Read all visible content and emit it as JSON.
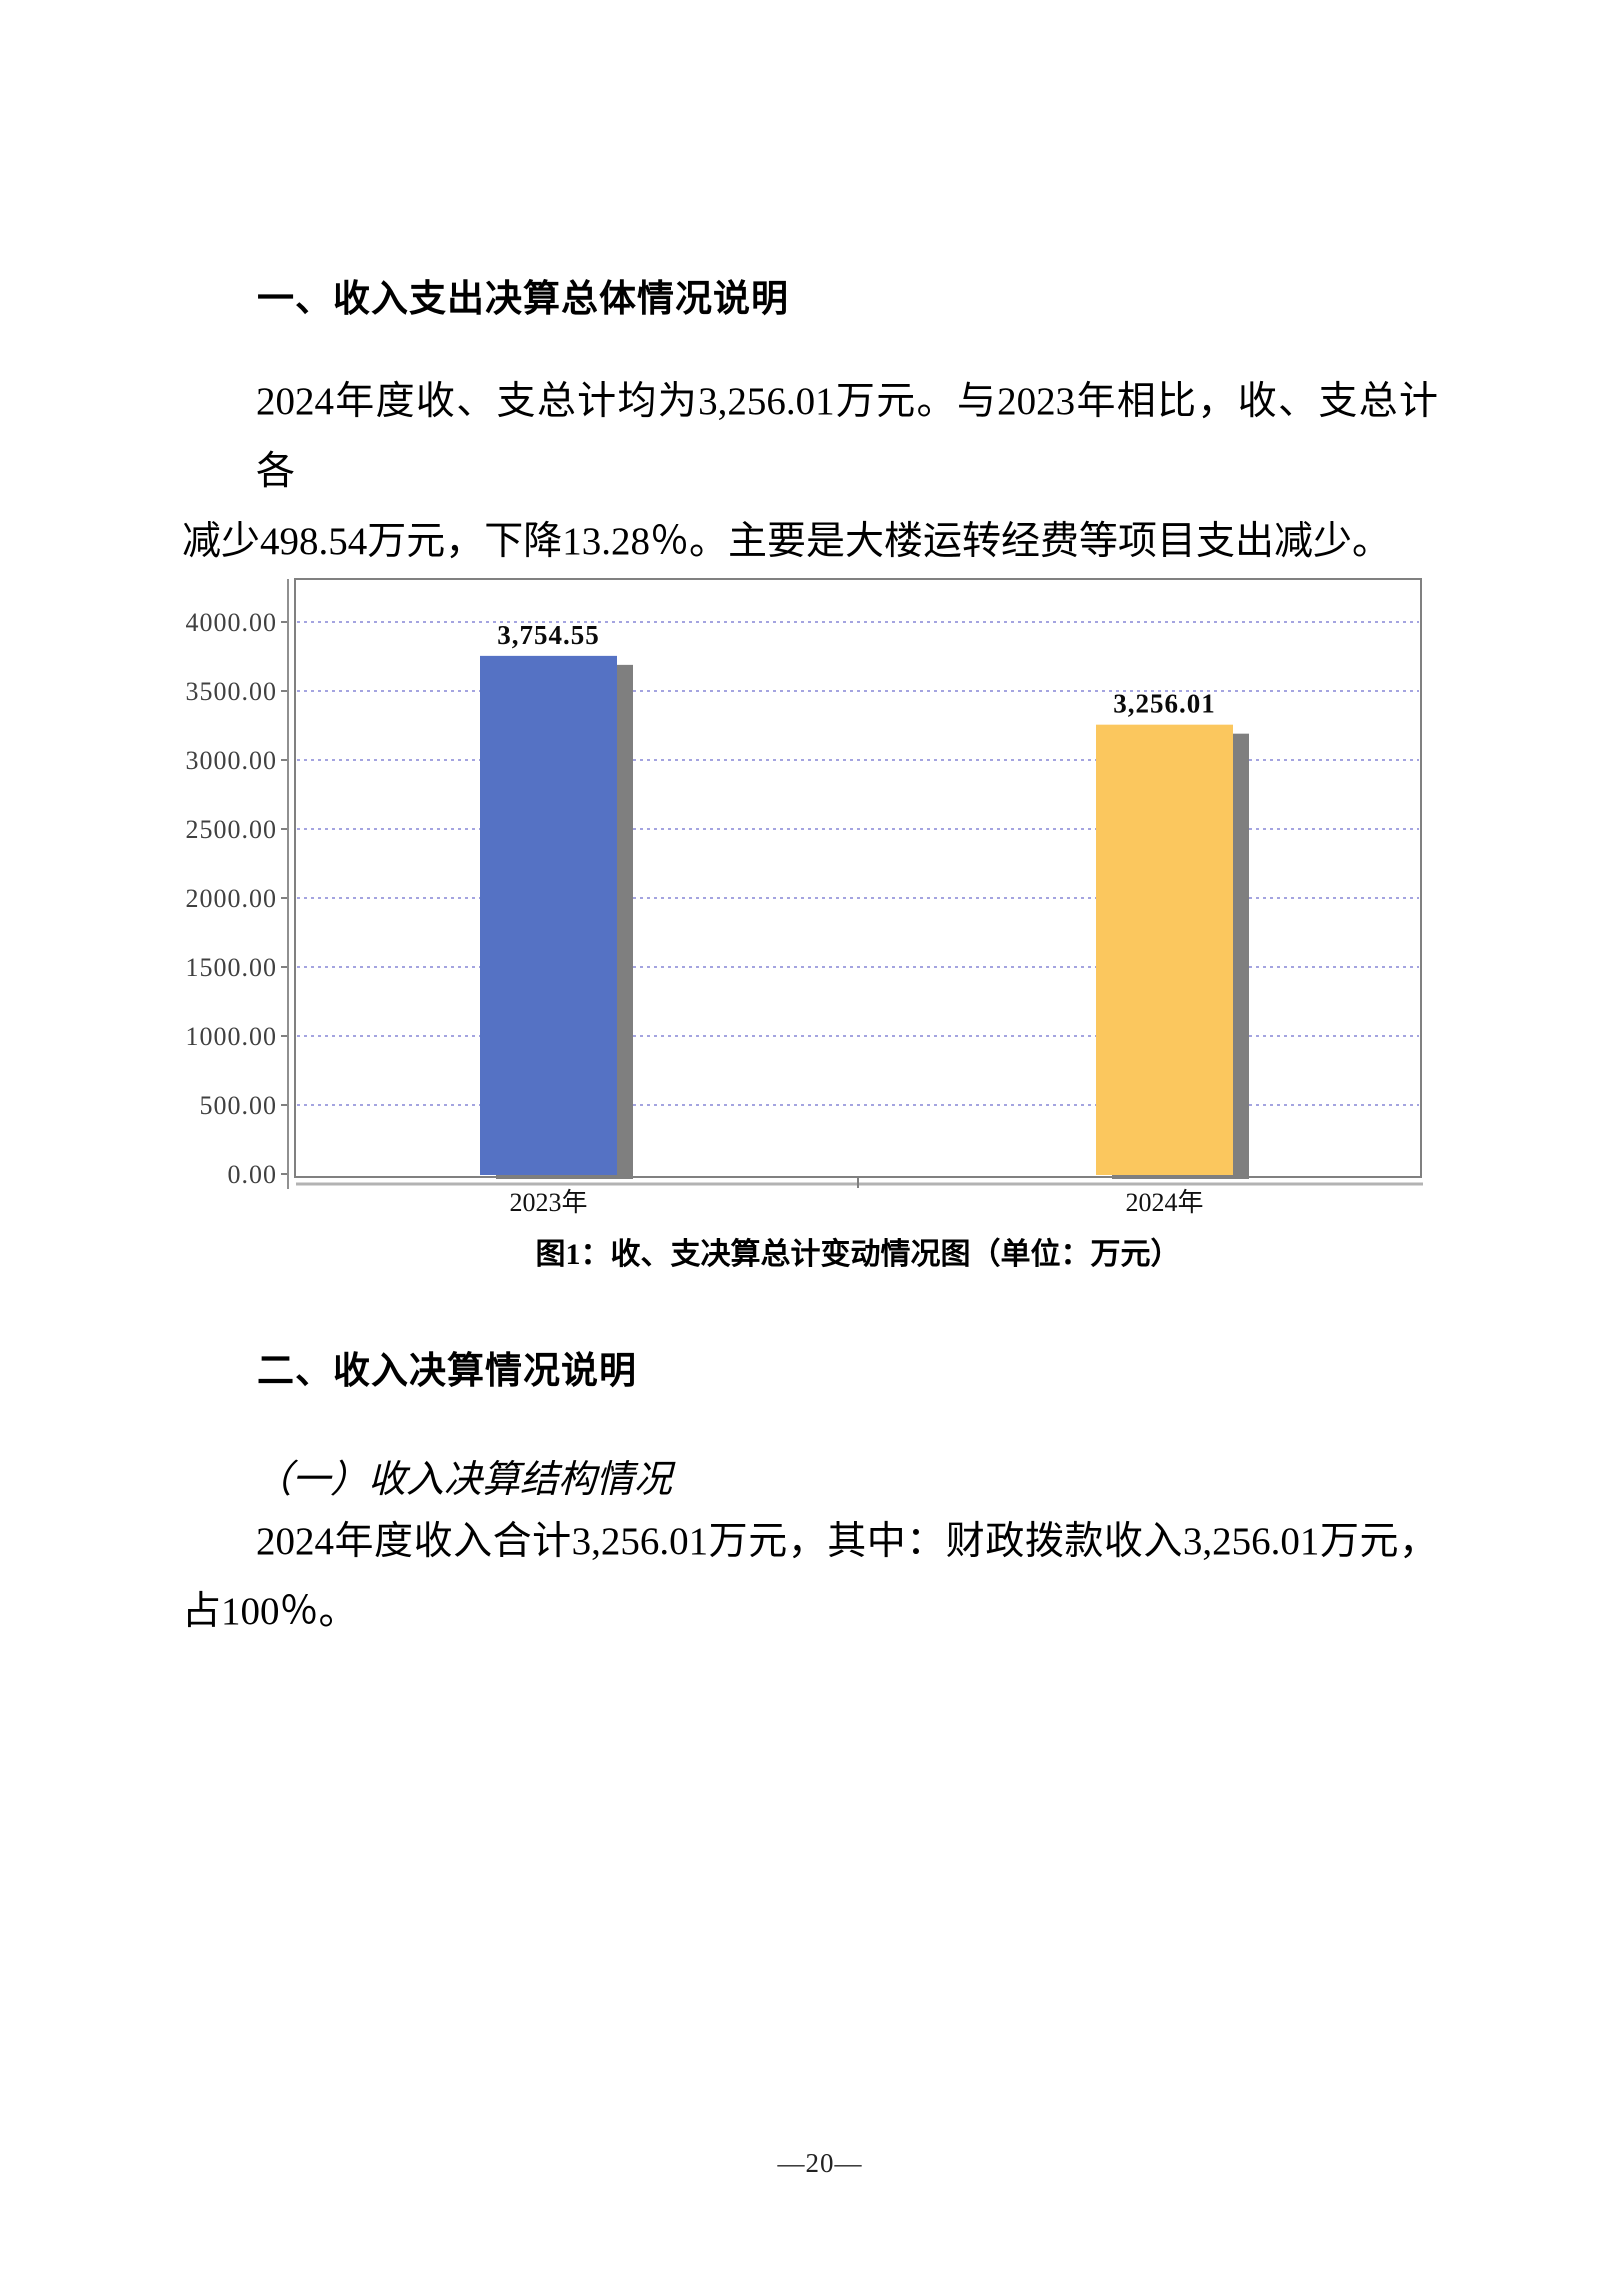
{
  "document": {
    "section1_heading": "一、收入支出决算总体情况说明",
    "paragraph1_lines": [
      "2024年度收、支总计均为3,256.01万元。与2023年相比，收、支总计各",
      "减少498.54万元，下降13.28％。主要是大楼运转经费等项目支出减少。"
    ],
    "section2_heading": "二、收入决算情况说明",
    "subsection1_heading": "（一）收入决算结构情况",
    "paragraph2_lines": [
      "2024年度收入合计3,256.01万元，其中：财政拨款收入3,256.01万元，",
      "占100％。"
    ],
    "page_number": "—20—"
  },
  "chart_data": {
    "type": "bar",
    "title": "图1：收、支决算总计变动情况图（单位：万元）",
    "unit": "万元",
    "categories": [
      "2023年",
      "2024年"
    ],
    "values": [
      3754.55,
      3256.01
    ],
    "value_labels": [
      "3,754.55",
      "3,256.01"
    ],
    "bar_colors": [
      "#5572c4",
      "#fbc75e"
    ],
    "shadow_color": "#7f7f7f",
    "ylim": [
      0,
      4300
    ],
    "yticks": [
      0,
      500,
      1000,
      1500,
      2000,
      2500,
      3000,
      3500,
      4000
    ],
    "ytick_labels": [
      "0.00",
      "500.00",
      "1000.00",
      "1500.00",
      "2000.00",
      "2500.00",
      "3000.00",
      "3500.00",
      "4000.00"
    ],
    "grid": "horizontal-dashed",
    "gridline_color": "#8585d6",
    "axis_color": "#808080",
    "legend": "none"
  }
}
